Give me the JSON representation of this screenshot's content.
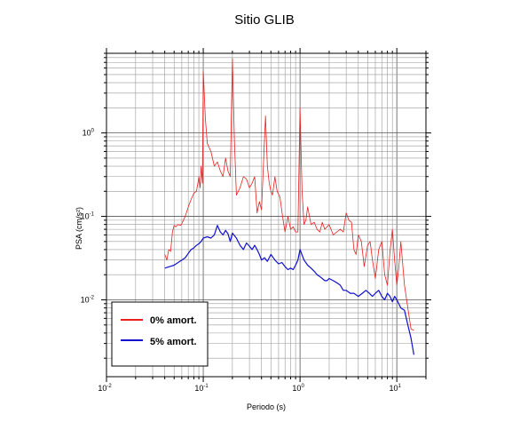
{
  "chart_data": {
    "type": "line",
    "title": "Sitio GLIB",
    "xlabel": "Periodo (s)",
    "ylabel": "PSA (cm/s²)",
    "xscale": "log",
    "yscale": "log",
    "xlim": [
      0.01,
      20
    ],
    "ylim": [
      0.0012,
      9
    ],
    "grid": true,
    "legend_position": "bottom-left",
    "x_ticks": [
      {
        "base": "10",
        "exp": "-2",
        "value": 0.01
      },
      {
        "base": "10",
        "exp": "-1",
        "value": 0.1
      },
      {
        "base": "10",
        "exp": "0",
        "value": 1
      },
      {
        "base": "10",
        "exp": "1",
        "value": 10
      }
    ],
    "y_ticks": [
      {
        "base": "10",
        "exp": "-2",
        "value": 0.01
      },
      {
        "base": "10",
        "exp": "-1",
        "value": 0.1
      },
      {
        "base": "10",
        "exp": "0",
        "value": 1
      }
    ],
    "series": [
      {
        "name": "0% amort.",
        "color": "#e82020",
        "x": [
          0.04,
          0.042,
          0.044,
          0.046,
          0.048,
          0.05,
          0.052,
          0.055,
          0.058,
          0.06,
          0.065,
          0.07,
          0.075,
          0.08,
          0.085,
          0.088,
          0.09,
          0.093,
          0.095,
          0.098,
          0.1,
          0.105,
          0.11,
          0.12,
          0.13,
          0.14,
          0.15,
          0.16,
          0.17,
          0.18,
          0.19,
          0.2,
          0.21,
          0.22,
          0.24,
          0.26,
          0.28,
          0.3,
          0.32,
          0.34,
          0.36,
          0.38,
          0.4,
          0.42,
          0.44,
          0.46,
          0.48,
          0.5,
          0.52,
          0.55,
          0.58,
          0.62,
          0.66,
          0.7,
          0.75,
          0.8,
          0.85,
          0.9,
          0.95,
          1.0,
          1.05,
          1.1,
          1.15,
          1.2,
          1.3,
          1.4,
          1.5,
          1.6,
          1.7,
          1.8,
          1.9,
          2.0,
          2.2,
          2.4,
          2.6,
          2.8,
          3.0,
          3.2,
          3.4,
          3.6,
          3.8,
          4.0,
          4.3,
          4.6,
          5.0,
          5.3,
          5.6,
          6.0,
          6.5,
          7.0,
          7.5,
          8.0,
          8.5,
          9.0,
          9.5,
          10.0,
          10.5,
          11.0,
          12.0,
          13.0,
          14.0,
          15.0
        ],
        "y": [
          0.035,
          0.03,
          0.04,
          0.038,
          0.065,
          0.078,
          0.075,
          0.08,
          0.078,
          0.082,
          0.1,
          0.13,
          0.16,
          0.19,
          0.2,
          0.25,
          0.3,
          0.22,
          0.4,
          0.25,
          5.5,
          1.5,
          0.75,
          0.6,
          0.4,
          0.45,
          0.35,
          0.3,
          0.5,
          0.35,
          0.3,
          7.8,
          0.8,
          0.18,
          0.22,
          0.3,
          0.28,
          0.22,
          0.25,
          0.3,
          0.11,
          0.15,
          0.12,
          0.45,
          1.6,
          0.4,
          0.25,
          0.2,
          0.18,
          0.3,
          0.2,
          0.17,
          0.1,
          0.065,
          0.1,
          0.07,
          0.075,
          0.065,
          0.065,
          2.0,
          0.2,
          0.08,
          0.09,
          0.13,
          0.08,
          0.085,
          0.07,
          0.065,
          0.085,
          0.07,
          0.075,
          0.08,
          0.06,
          0.065,
          0.07,
          0.065,
          0.11,
          0.09,
          0.085,
          0.04,
          0.035,
          0.06,
          0.05,
          0.025,
          0.045,
          0.05,
          0.03,
          0.018,
          0.04,
          0.05,
          0.02,
          0.015,
          0.038,
          0.07,
          0.03,
          0.015,
          0.025,
          0.05,
          0.015,
          0.008,
          0.0045,
          0.0043
        ]
      },
      {
        "name": "5% amort.",
        "color": "#1010cc",
        "x": [
          0.04,
          0.045,
          0.05,
          0.055,
          0.06,
          0.065,
          0.07,
          0.075,
          0.08,
          0.085,
          0.09,
          0.095,
          0.1,
          0.11,
          0.12,
          0.13,
          0.14,
          0.15,
          0.16,
          0.17,
          0.18,
          0.19,
          0.2,
          0.22,
          0.24,
          0.26,
          0.28,
          0.3,
          0.32,
          0.34,
          0.36,
          0.38,
          0.4,
          0.43,
          0.46,
          0.5,
          0.55,
          0.6,
          0.65,
          0.7,
          0.75,
          0.8,
          0.85,
          0.9,
          0.95,
          1.0,
          1.1,
          1.2,
          1.3,
          1.4,
          1.5,
          1.6,
          1.7,
          1.8,
          1.9,
          2.0,
          2.2,
          2.4,
          2.6,
          2.8,
          3.0,
          3.3,
          3.6,
          4.0,
          4.4,
          4.8,
          5.2,
          5.6,
          6.0,
          6.5,
          7.0,
          7.5,
          8.0,
          8.5,
          9.0,
          9.5,
          10.0,
          11.0,
          12.0,
          13.0,
          14.0,
          15.0
        ],
        "y": [
          0.024,
          0.025,
          0.026,
          0.028,
          0.03,
          0.032,
          0.036,
          0.04,
          0.042,
          0.045,
          0.047,
          0.05,
          0.055,
          0.057,
          0.055,
          0.06,
          0.078,
          0.065,
          0.06,
          0.068,
          0.062,
          0.05,
          0.063,
          0.055,
          0.045,
          0.04,
          0.048,
          0.044,
          0.04,
          0.045,
          0.04,
          0.035,
          0.03,
          0.032,
          0.029,
          0.035,
          0.03,
          0.027,
          0.028,
          0.025,
          0.023,
          0.024,
          0.023,
          0.026,
          0.03,
          0.04,
          0.03,
          0.026,
          0.024,
          0.022,
          0.02,
          0.019,
          0.018,
          0.017,
          0.017,
          0.018,
          0.017,
          0.016,
          0.015,
          0.013,
          0.013,
          0.012,
          0.012,
          0.011,
          0.012,
          0.013,
          0.012,
          0.011,
          0.012,
          0.013,
          0.011,
          0.01,
          0.012,
          0.011,
          0.0095,
          0.011,
          0.01,
          0.008,
          0.0075,
          0.005,
          0.0035,
          0.0022
        ]
      }
    ]
  }
}
